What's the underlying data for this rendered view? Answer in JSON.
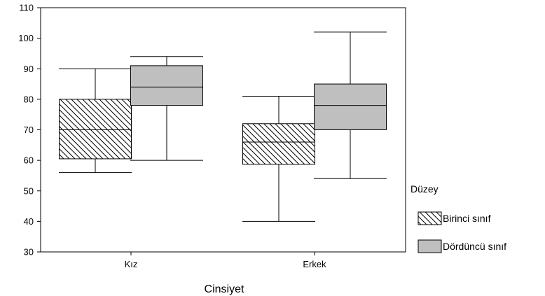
{
  "chart_data": {
    "type": "boxplot",
    "xlabel": "Cinsiyet",
    "ylabel": "",
    "ylim": [
      30,
      110
    ],
    "yticks": [
      30,
      40,
      50,
      60,
      70,
      80,
      90,
      100,
      110
    ],
    "categories": [
      "Kız",
      "Erkek"
    ],
    "legend": {
      "title": "Düzey",
      "placement": "right",
      "entries": [
        "Birinci sınıf",
        "Dördüncü sınıf"
      ]
    },
    "series": [
      {
        "name": "Birinci sınıf",
        "fill": "hatch",
        "values": [
          {
            "min": 56,
            "q1": 60.5,
            "median": 70,
            "q3": 80,
            "max": 90
          },
          {
            "min": 40,
            "q1": 58.7,
            "median": 66,
            "q3": 72,
            "max": 81
          }
        ]
      },
      {
        "name": "Dördüncü sınıf",
        "fill": "#bfbfbf",
        "values": [
          {
            "min": 60,
            "q1": 78,
            "median": 84,
            "q3": 91,
            "max": 94
          },
          {
            "min": 54,
            "q1": 70,
            "median": 78,
            "q3": 85,
            "max": 102
          }
        ]
      }
    ],
    "grid": false
  }
}
